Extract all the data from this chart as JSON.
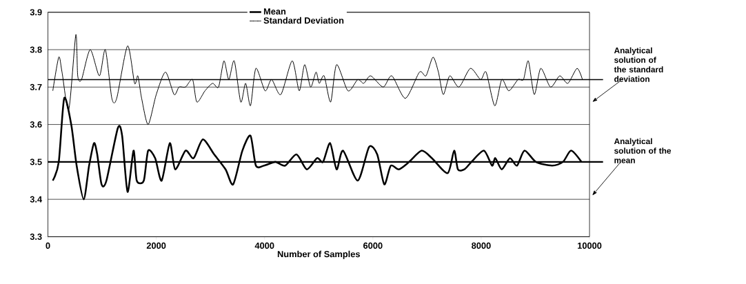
{
  "chart_data": {
    "type": "line",
    "xlabel": "Number of Samples",
    "xlim": [
      0,
      10000
    ],
    "xticks": [
      0,
      2000,
      4000,
      6000,
      8000,
      10000
    ],
    "ylim": [
      3.3,
      3.9
    ],
    "yticks": [
      {
        "value": 3.3,
        "label": "3.3"
      },
      {
        "value": 3.4,
        "label": "3.4"
      },
      {
        "value": 3.5,
        "label": "3.5"
      },
      {
        "value": 3.6,
        "label": "3.6"
      },
      {
        "value": 3.7,
        "label": "3.7"
      },
      {
        "value": 3.8,
        "label": "3.8"
      },
      {
        "value": 3.9,
        "label": "3.9"
      }
    ],
    "grid": "y",
    "legend": "top",
    "line_style": "solid",
    "series": [
      {
        "name": "Mean",
        "color": "#000000",
        "x": [
          90,
          200,
          300,
          430,
          530,
          660,
          760,
          850,
          910,
          990,
          1080,
          1290,
          1370,
          1470,
          1580,
          1640,
          1770,
          1850,
          1980,
          2100,
          2250,
          2350,
          2540,
          2690,
          2860,
          3070,
          3280,
          3420,
          3590,
          3740,
          3840,
          3990,
          4200,
          4380,
          4590,
          4780,
          4970,
          5080,
          5210,
          5330,
          5450,
          5720,
          5930,
          6080,
          6210,
          6330,
          6480,
          6670,
          6900,
          7090,
          7380,
          7500,
          7570,
          7690,
          7820,
          8050,
          8200,
          8260,
          8380,
          8530,
          8660,
          8800,
          9010,
          9310,
          9510,
          9660,
          9850
        ],
        "values": [
          3.45,
          3.5,
          3.67,
          3.6,
          3.49,
          3.4,
          3.49,
          3.55,
          3.52,
          3.44,
          3.45,
          3.59,
          3.57,
          3.42,
          3.53,
          3.45,
          3.45,
          3.53,
          3.51,
          3.45,
          3.55,
          3.48,
          3.53,
          3.51,
          3.56,
          3.52,
          3.48,
          3.44,
          3.53,
          3.57,
          3.49,
          3.49,
          3.5,
          3.49,
          3.52,
          3.48,
          3.51,
          3.5,
          3.55,
          3.48,
          3.53,
          3.45,
          3.54,
          3.52,
          3.44,
          3.49,
          3.48,
          3.5,
          3.53,
          3.51,
          3.47,
          3.53,
          3.48,
          3.48,
          3.5,
          3.53,
          3.49,
          3.51,
          3.48,
          3.51,
          3.49,
          3.53,
          3.5,
          3.49,
          3.5,
          3.53,
          3.5
        ]
      },
      {
        "name": "Standard Deviation",
        "color": "#000000",
        "x": [
          90,
          200,
          260,
          385,
          515,
          550,
          620,
          780,
          950,
          1060,
          1180,
          1270,
          1470,
          1600,
          1660,
          1730,
          1850,
          2000,
          2170,
          2330,
          2420,
          2540,
          2670,
          2750,
          2900,
          3040,
          3150,
          3250,
          3340,
          3440,
          3560,
          3650,
          3740,
          3840,
          4010,
          4130,
          4300,
          4510,
          4640,
          4740,
          4850,
          4950,
          5010,
          5100,
          5220,
          5330,
          5540,
          5720,
          5830,
          5960,
          6190,
          6350,
          6600,
          6860,
          6980,
          7110,
          7210,
          7300,
          7420,
          7590,
          7800,
          7990,
          8090,
          8250,
          8380,
          8510,
          8680,
          8780,
          8870,
          8980,
          9100,
          9280,
          9450,
          9600,
          9770,
          9870
        ],
        "values": [
          3.69,
          3.78,
          3.74,
          3.64,
          3.84,
          3.73,
          3.72,
          3.8,
          3.73,
          3.8,
          3.67,
          3.67,
          3.81,
          3.71,
          3.73,
          3.67,
          3.6,
          3.68,
          3.74,
          3.68,
          3.7,
          3.7,
          3.72,
          3.66,
          3.69,
          3.71,
          3.7,
          3.77,
          3.72,
          3.77,
          3.66,
          3.71,
          3.65,
          3.75,
          3.69,
          3.72,
          3.68,
          3.77,
          3.69,
          3.76,
          3.7,
          3.74,
          3.71,
          3.73,
          3.66,
          3.76,
          3.69,
          3.72,
          3.71,
          3.73,
          3.7,
          3.73,
          3.67,
          3.74,
          3.73,
          3.78,
          3.74,
          3.68,
          3.73,
          3.7,
          3.75,
          3.72,
          3.74,
          3.65,
          3.72,
          3.69,
          3.72,
          3.72,
          3.77,
          3.68,
          3.75,
          3.7,
          3.73,
          3.71,
          3.75,
          3.72
        ]
      }
    ],
    "ref_lines": [
      {
        "axis": "y",
        "value": 3.72,
        "label": "Analytical solution of the standard deviation",
        "color": "#000000"
      },
      {
        "axis": "y",
        "value": 3.5,
        "label": "Analytical solution of the mean",
        "color": "#000000"
      }
    ]
  }
}
